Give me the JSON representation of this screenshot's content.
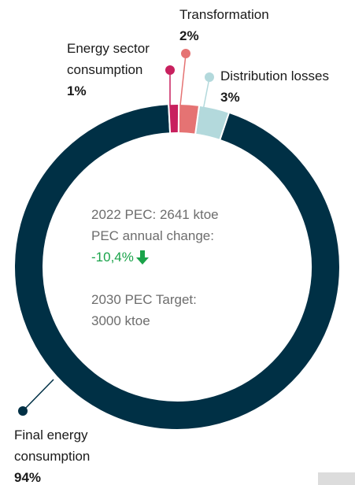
{
  "chart_data": {
    "type": "donut",
    "categories": [
      "Energy sector consumption",
      "Transformation",
      "Distribution losses",
      "Final energy consumption"
    ],
    "values": [
      1,
      2,
      3,
      94
    ],
    "value_labels": [
      "1%",
      "2%",
      "3%",
      "94%"
    ],
    "colors": [
      "#c8205e",
      "#e57373",
      "#b3d9dc",
      "#003045"
    ],
    "annotations": [
      "2022 PEC: 2641 ktoe",
      "PEC annual change:",
      "-10,4%",
      "2030 PEC Target:",
      "3000 ktoe"
    ]
  }
}
